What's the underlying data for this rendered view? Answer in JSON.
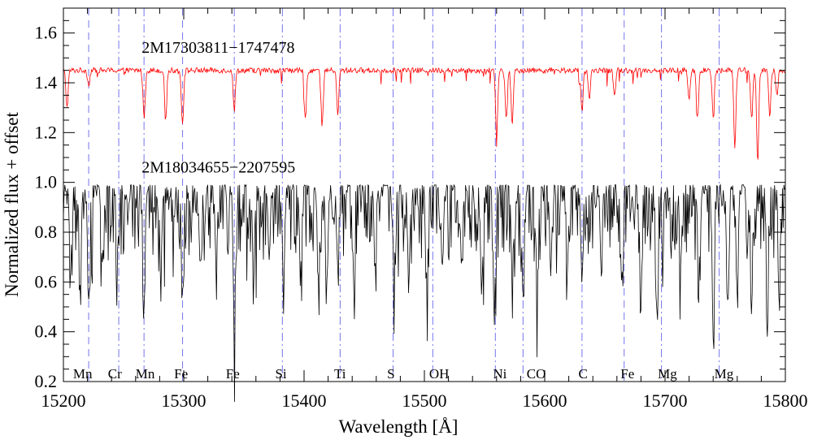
{
  "chart_data": {
    "type": "line",
    "xlabel": "Wavelength [Å]",
    "ylabel": "Normalized flux + offset",
    "xlim": [
      15200,
      15800
    ],
    "ylim": [
      0.2,
      1.7
    ],
    "x_ticks": [
      15200,
      15300,
      15400,
      15500,
      15600,
      15700,
      15800
    ],
    "x_tick_labels": [
      "15200",
      "15300",
      "15400",
      "15500",
      "15600",
      "15700",
      "15800"
    ],
    "y_ticks": [
      0.2,
      0.4,
      0.6,
      0.8,
      1.0,
      1.2,
      1.4,
      1.6
    ],
    "y_tick_labels": [
      "0.2",
      "0.4",
      "0.6",
      "0.8",
      "1.0",
      "1.2",
      "1.4",
      "1.6"
    ],
    "x_minor_step": 20,
    "y_minor_step": 0.05,
    "grid": false,
    "line_marker_color": "#8080ee",
    "line_markers": [
      {
        "label": "Mn",
        "x": 15221,
        "label_x": 15208,
        "style": "dash"
      },
      {
        "label": "Cr",
        "x": 15246,
        "label_x": 15237,
        "style": "dashdot"
      },
      {
        "label": "Mn",
        "x": 15267,
        "label_x": 15260,
        "style": "dashdot"
      },
      {
        "label": "Fe",
        "x": 15299,
        "label_x": 15292,
        "style": "dash"
      },
      {
        "label": "Fe",
        "x": 15342,
        "label_x": 15335,
        "style": "dashdot"
      },
      {
        "label": "Si",
        "x": 15382,
        "label_x": 15376,
        "style": "dashdot"
      },
      {
        "label": "Ti",
        "x": 15430,
        "label_x": 15425,
        "style": "dashdot"
      },
      {
        "label": "S",
        "x": 15474,
        "label_x": 15469,
        "style": "dashdot"
      },
      {
        "label": "OH",
        "x": 15507,
        "label_x": 15504,
        "style": "dashdot"
      },
      {
        "label": "Ni",
        "x": 15559,
        "label_x": 15557,
        "style": "dashdot"
      },
      {
        "label": "CO",
        "x": 15582,
        "label_x": 15585,
        "style": "dashdot"
      },
      {
        "label": "C",
        "x": 15631,
        "label_x": 15628,
        "style": "dashdot"
      },
      {
        "label": "Fe",
        "x": 15666,
        "label_x": 15663,
        "style": "dash"
      },
      {
        "label": "Mg",
        "x": 15697,
        "label_x": 15694,
        "style": "dashdot"
      },
      {
        "label": "Mg",
        "x": 15745,
        "label_x": 15741,
        "style": "dashdot"
      }
    ],
    "series": [
      {
        "name": "2M17303811−1747478",
        "color": "#ff0000",
        "continuum": 1.45,
        "label_x": 15265,
        "label_y": 1.52,
        "deep_lines": [
          [
            15203,
            0.15
          ],
          [
            15221,
            0.06
          ],
          [
            15267,
            0.19
          ],
          [
            15285,
            0.18
          ],
          [
            15299,
            0.22
          ],
          [
            15342,
            0.16
          ],
          [
            15401,
            0.2
          ],
          [
            15415,
            0.22
          ],
          [
            15428,
            0.18
          ],
          [
            15560,
            0.25
          ],
          [
            15568,
            0.2
          ],
          [
            15573,
            0.22
          ],
          [
            15631,
            0.17
          ],
          [
            15637,
            0.12
          ],
          [
            15658,
            0.1
          ],
          [
            15720,
            0.12
          ],
          [
            15727,
            0.2
          ],
          [
            15740,
            0.18
          ],
          [
            15758,
            0.31
          ],
          [
            15772,
            0.2
          ],
          [
            15777,
            0.37
          ],
          [
            15787,
            0.18
          ],
          [
            15793,
            0.1
          ]
        ],
        "noise": 0.022
      },
      {
        "name": "2M18034655−2207595",
        "color": "#000000",
        "continuum": 0.99,
        "label_x": 15265,
        "label_y": 1.04,
        "deep_lines": [
          [
            15206,
            0.3
          ],
          [
            15214,
            0.36
          ],
          [
            15221,
            0.46
          ],
          [
            15232,
            0.28
          ],
          [
            15245,
            0.25
          ],
          [
            15267,
            0.44
          ],
          [
            15281,
            0.3
          ],
          [
            15299,
            0.42
          ],
          [
            15314,
            0.3
          ],
          [
            15327,
            0.32
          ],
          [
            15342,
            0.59
          ],
          [
            15358,
            0.34
          ],
          [
            15371,
            0.3
          ],
          [
            15383,
            0.38
          ],
          [
            15397,
            0.32
          ],
          [
            15412,
            0.36
          ],
          [
            15419,
            0.38
          ],
          [
            15428,
            0.32
          ],
          [
            15441,
            0.3
          ],
          [
            15459,
            0.28
          ],
          [
            15475,
            0.3
          ],
          [
            15487,
            0.34
          ],
          [
            15502,
            0.36
          ],
          [
            15515,
            0.32
          ],
          [
            15531,
            0.3
          ],
          [
            15548,
            0.36
          ],
          [
            15558,
            0.5
          ],
          [
            15573,
            0.36
          ],
          [
            15582,
            0.46
          ],
          [
            15594,
            0.32
          ],
          [
            15605,
            0.34
          ],
          [
            15619,
            0.3
          ],
          [
            15631,
            0.36
          ],
          [
            15647,
            0.3
          ],
          [
            15664,
            0.38
          ],
          [
            15680,
            0.3
          ],
          [
            15693,
            0.38
          ],
          [
            15713,
            0.32
          ],
          [
            15728,
            0.36
          ],
          [
            15740,
            0.48
          ],
          [
            15752,
            0.46
          ],
          [
            15760,
            0.42
          ],
          [
            15772,
            0.36
          ],
          [
            15785,
            0.4
          ],
          [
            15795,
            0.38
          ]
        ],
        "noise": 0.28
      }
    ]
  }
}
